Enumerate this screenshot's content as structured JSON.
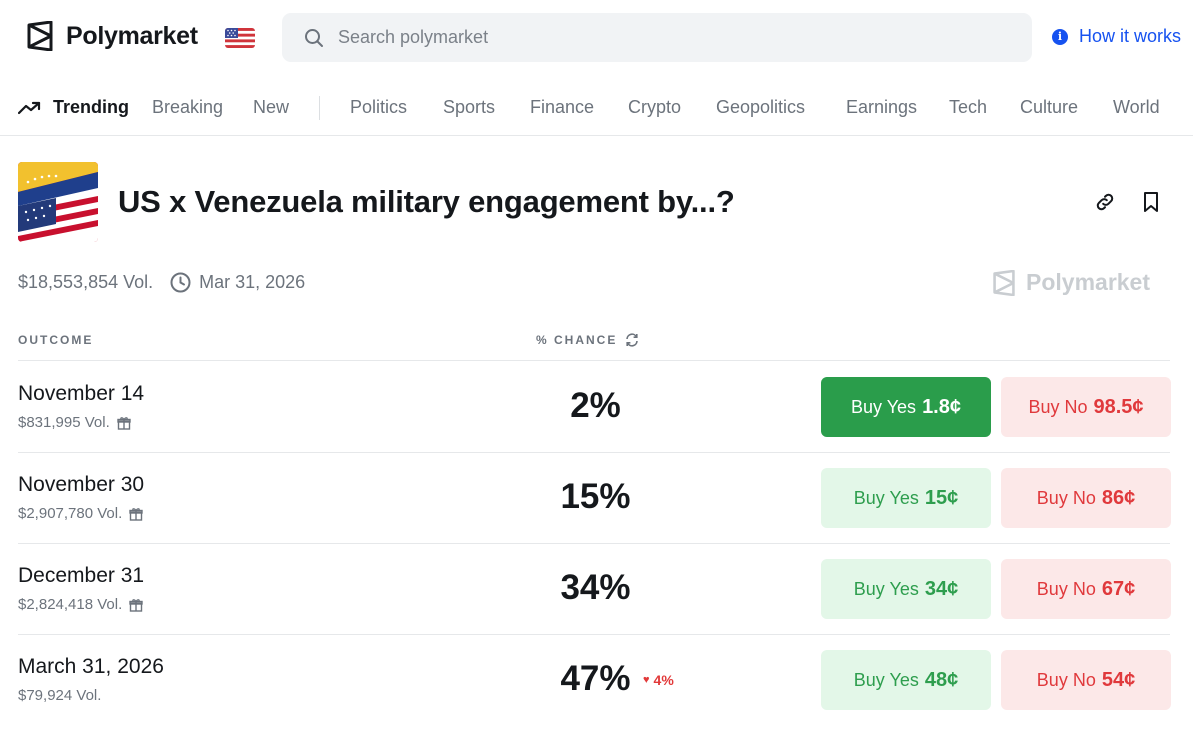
{
  "header": {
    "brand": "Polymarket",
    "search": {
      "placeholder": "Search polymarket",
      "value": ""
    },
    "how_it_works": "How it works",
    "icons": {
      "logo": "polymarket-logo",
      "flag": "us-flag-icon",
      "search": "search-icon",
      "info": "info-icon"
    }
  },
  "nav": {
    "trending": "Trending",
    "items": [
      "Breaking",
      "New",
      "Politics",
      "Sports",
      "Finance",
      "Crypto",
      "Geopolitics",
      "Earnings",
      "Tech",
      "Culture",
      "World"
    ]
  },
  "market": {
    "title": "US x Venezuela military engagement by...?",
    "volume": "$18,553,854 Vol.",
    "end_date": "Mar 31, 2026",
    "watermark": "Polymarket"
  },
  "table": {
    "col_outcome": "OUTCOME",
    "col_chance": "% CHANCE",
    "rows": [
      {
        "title": "November 14",
        "volume": "$831,995 Vol.",
        "chance": "2%",
        "delta": "",
        "yes_label": "Buy Yes",
        "yes_price": "1.8¢",
        "no_label": "Buy No",
        "no_price": "98.5¢"
      },
      {
        "title": "November 30",
        "volume": "$2,907,780 Vol.",
        "chance": "15%",
        "delta": "",
        "yes_label": "Buy Yes",
        "yes_price": "15¢",
        "no_label": "Buy No",
        "no_price": "86¢"
      },
      {
        "title": "December 31",
        "volume": "$2,824,418 Vol.",
        "chance": "34%",
        "delta": "",
        "yes_label": "Buy Yes",
        "yes_price": "34¢",
        "no_label": "Buy No",
        "no_price": "67¢"
      },
      {
        "title": "March 31, 2026",
        "volume": "$79,924 Vol.",
        "chance": "47%",
        "delta": "4%",
        "yes_label": "Buy Yes",
        "yes_price": "48¢",
        "no_label": "Buy No",
        "no_price": "54¢"
      }
    ]
  },
  "colors": {
    "accent_blue": "#1652f0",
    "yes_green": "#2a9d4b",
    "yes_bg": "#e3f7e8",
    "no_red": "#e0393c",
    "no_bg": "#fce8e8"
  }
}
